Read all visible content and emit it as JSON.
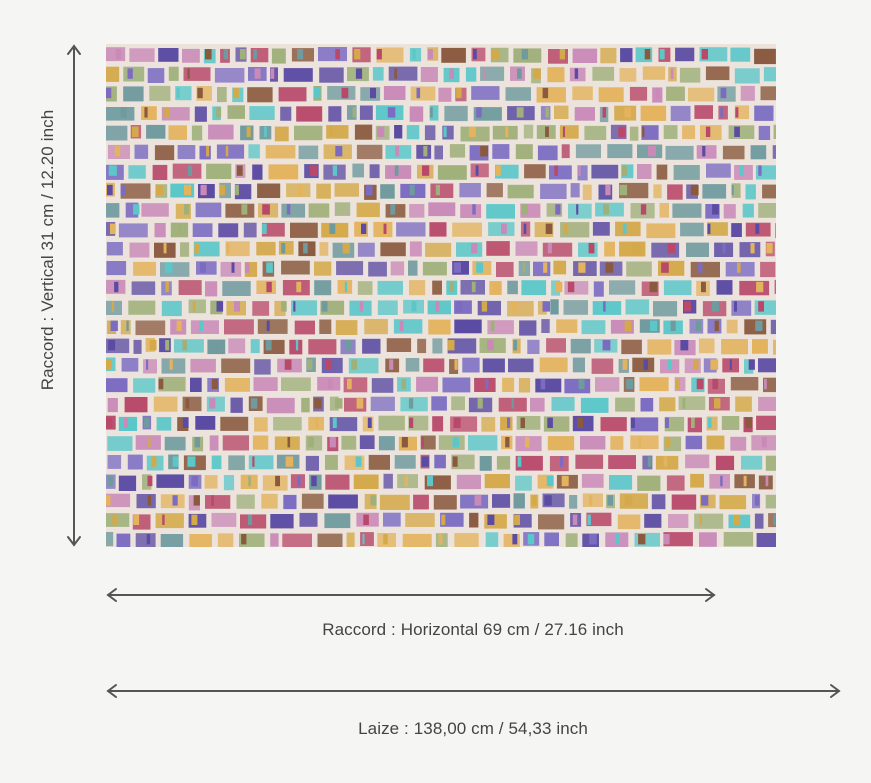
{
  "dimensions": {
    "vertical_repeat": "Raccord : Vertical 31 cm / 12.20 inch",
    "horizontal_repeat": "Raccord : Horizontal 69 cm / 27.16 inch",
    "width": "Laize : 138,00 cm / 54,33 inch"
  },
  "swatch": {
    "background": "#ece3dc",
    "colors": [
      "#5b4ba3",
      "#e3b35d",
      "#5cc7c9",
      "#8a5a3f",
      "#c98ab8",
      "#7b6cc2",
      "#d4a94a",
      "#6f9a9e",
      "#b8496a",
      "#9fb07a"
    ]
  },
  "arrow_color": "#555555"
}
